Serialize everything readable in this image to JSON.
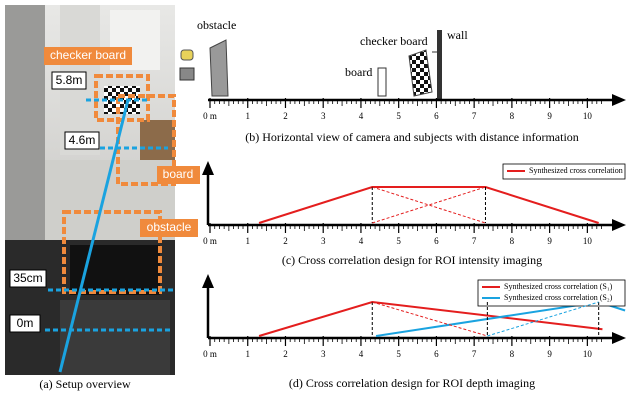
{
  "photo": {
    "labels": [
      "checker board",
      "5.8m",
      "4.6m",
      "board",
      "obstacle",
      "35cm",
      "0m"
    ],
    "caption": "(a) Setup overview"
  },
  "axis": {
    "ticks": [
      {
        "value": 0,
        "label": "0 m"
      },
      1,
      2,
      3,
      4,
      5,
      6,
      7,
      8,
      9,
      10
    ],
    "xlim": [
      0,
      10.6
    ]
  },
  "horizontal_view": {
    "labels": {
      "obstacle": "obstacle",
      "checker_board": "checker board",
      "board": "board",
      "wall": "wall"
    },
    "caption": "(b) Horizontal view of camera and subjects with distance information"
  },
  "intensity": {
    "series": [
      {
        "name": "Synthesized cross correlation",
        "color": "#e41e1e",
        "x": [
          1.3,
          4.3,
          7.3,
          10.3
        ],
        "y": [
          0,
          1,
          1,
          0
        ]
      }
    ],
    "caption": "(c) Cross correlation design for ROI intensity imaging"
  },
  "depth": {
    "series": [
      {
        "name": "Synthesized cross correlation (S₁)",
        "color": "#e41e1e",
        "x": [
          1.3,
          4.3,
          10.4
        ],
        "y": [
          0,
          1,
          0.2
        ]
      },
      {
        "name": "Synthesized cross correlation (S₂)",
        "color": "#1aa3e0",
        "x": [
          4.4,
          10.3,
          11.0
        ],
        "y": [
          0,
          1,
          0.75
        ]
      }
    ],
    "caption": "(d) Cross correlation design for ROI depth imaging"
  }
}
